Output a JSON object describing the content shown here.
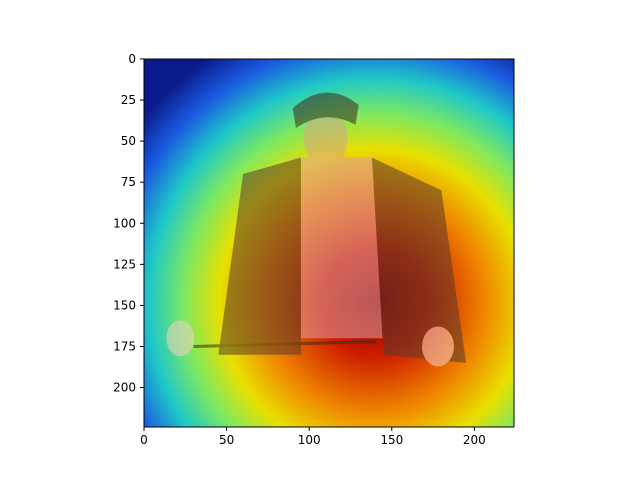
{
  "chart_data": {
    "type": "heatmap",
    "description_visible": "image with heatmap overlay",
    "colormap": "jet",
    "overlay_alpha": 0.55,
    "x_range": [
      0,
      224
    ],
    "y_range": [
      0,
      224
    ],
    "y_inverted": true,
    "grid": false,
    "x_ticks": [
      0,
      50,
      100,
      150,
      200
    ],
    "y_ticks": [
      0,
      25,
      50,
      75,
      100,
      125,
      150,
      175,
      200
    ],
    "x_tick_labels": [
      "0",
      "50",
      "100",
      "150",
      "200"
    ],
    "y_tick_labels": [
      "0",
      "25",
      "50",
      "75",
      "100",
      "125",
      "150",
      "175",
      "200"
    ],
    "heat_peak_data": [
      140,
      140
    ],
    "heat_spread_data": [
      125,
      125
    ],
    "colors": {
      "background": "#0c1f86",
      "frame": "#000000"
    }
  }
}
